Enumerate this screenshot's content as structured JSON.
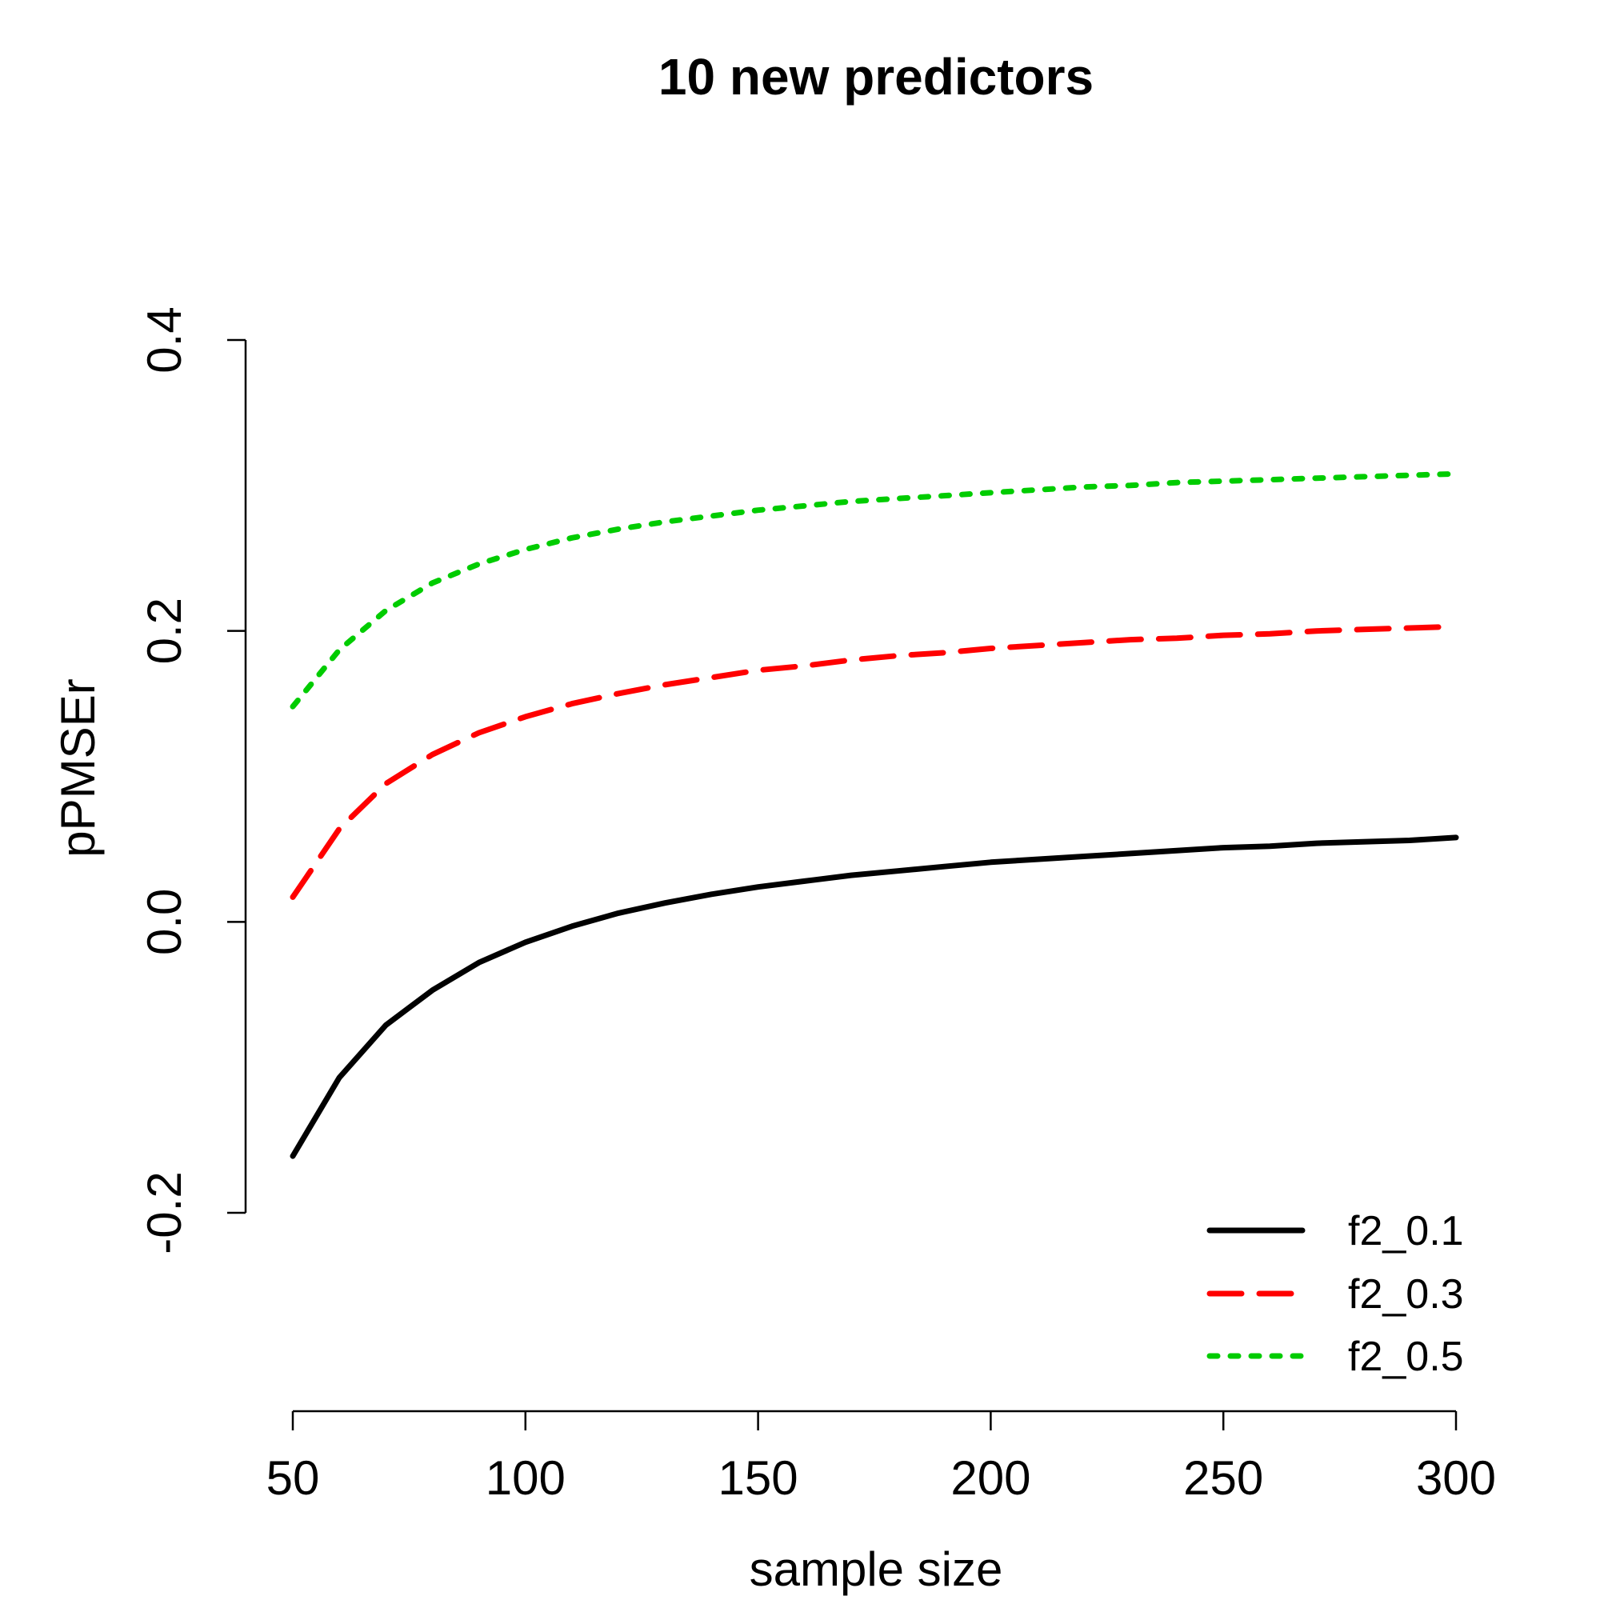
{
  "chart_data": {
    "type": "line",
    "title": "10 new predictors",
    "xlabel": "sample size",
    "ylabel": "pPMSEr",
    "xlim": [
      50,
      300
    ],
    "ylim": [
      -0.2,
      0.4
    ],
    "x_ticks": [
      "50",
      "100",
      "150",
      "200",
      "250",
      "300"
    ],
    "y_ticks": [
      "-0.2",
      "0.0",
      "0.2",
      "0.4"
    ],
    "grid": false,
    "legend_position": "bottom-right",
    "x": [
      50,
      60,
      70,
      80,
      90,
      100,
      110,
      120,
      130,
      140,
      150,
      160,
      170,
      180,
      190,
      200,
      210,
      220,
      230,
      240,
      250,
      260,
      270,
      280,
      290,
      300
    ],
    "series": [
      {
        "name": "f2_0.1",
        "color": "#000000",
        "dash": "solid",
        "values": [
          -0.161,
          -0.107,
          -0.071,
          -0.047,
          -0.028,
          -0.014,
          -0.003,
          0.006,
          0.013,
          0.019,
          0.024,
          0.028,
          0.032,
          0.035,
          0.038,
          0.041,
          0.043,
          0.045,
          0.047,
          0.049,
          0.051,
          0.052,
          0.054,
          0.055,
          0.056,
          0.058
        ]
      },
      {
        "name": "f2_0.3",
        "color": "#ff0000",
        "dash": "dashed",
        "values": [
          0.017,
          0.064,
          0.095,
          0.115,
          0.13,
          0.141,
          0.15,
          0.157,
          0.163,
          0.168,
          0.173,
          0.176,
          0.18,
          0.183,
          0.185,
          0.188,
          0.19,
          0.192,
          0.194,
          0.195,
          0.197,
          0.198,
          0.2,
          0.201,
          0.202,
          0.203
        ]
      },
      {
        "name": "f2_0.5",
        "color": "#00cc00",
        "dash": "dotted",
        "values": [
          0.148,
          0.187,
          0.214,
          0.233,
          0.246,
          0.256,
          0.264,
          0.27,
          0.275,
          0.279,
          0.283,
          0.286,
          0.289,
          0.291,
          0.293,
          0.295,
          0.297,
          0.299,
          0.3,
          0.302,
          0.303,
          0.304,
          0.305,
          0.306,
          0.307,
          0.308
        ]
      }
    ]
  }
}
